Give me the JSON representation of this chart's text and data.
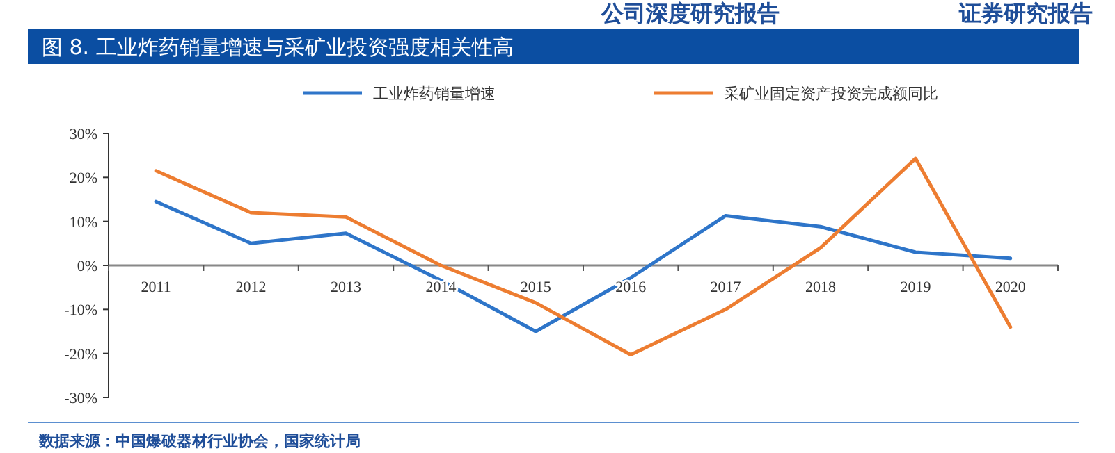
{
  "chart_data": {
    "type": "line",
    "title": "图 8. 工业炸药销量增速与采矿业投资强度相关性高",
    "categories": [
      "2011",
      "2012",
      "2013",
      "2014",
      "2015",
      "2016",
      "2017",
      "2018",
      "2019",
      "2020"
    ],
    "series": [
      {
        "name": "工业炸药销量增速",
        "color": "#2e75c9",
        "values": [
          14.5,
          5,
          7.3,
          -3.4,
          -15,
          -2.8,
          11.3,
          8.8,
          3,
          1.6
        ]
      },
      {
        "name": "采矿业固定资产投资完成额同比",
        "color": "#ed7d31",
        "values": [
          21.5,
          12,
          11,
          0,
          -8.5,
          -20.3,
          -10,
          4,
          24.3,
          -14
        ]
      }
    ],
    "ylim": [
      -30,
      30
    ],
    "yticks": [
      {
        "value": -30,
        "label": "-30%"
      },
      {
        "value": -20,
        "label": "-20%"
      },
      {
        "value": -10,
        "label": "-10%"
      },
      {
        "value": 0,
        "label": "0%"
      },
      {
        "value": 10,
        "label": "10%"
      },
      {
        "value": 20,
        "label": "20%"
      },
      {
        "value": 30,
        "label": "30%"
      }
    ],
    "legend": "top",
    "line_style": "solid",
    "marker": "none",
    "grid": false,
    "annotations": [
      "公司深度研究报告",
      "证券研究报告",
      "数据来源：中国爆破器材行业协会，国家统计局"
    ]
  }
}
